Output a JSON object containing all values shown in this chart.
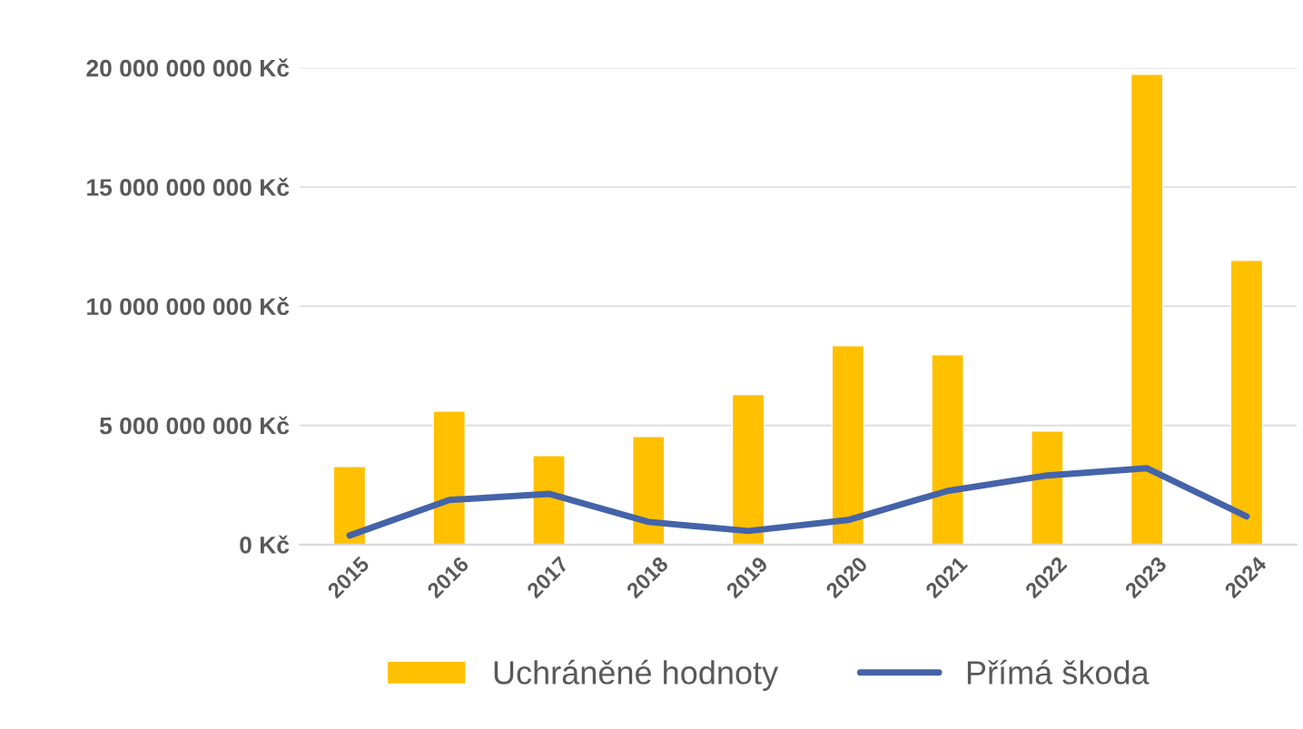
{
  "chart_data": {
    "type": "bar",
    "categories": [
      "2015",
      "2016",
      "2017",
      "2018",
      "2019",
      "2020",
      "2021",
      "2022",
      "2023",
      "2024"
    ],
    "series": [
      {
        "name": "Uchráněné hodnoty",
        "color": "#ffc000",
        "values": [
          3280000000,
          5600000000,
          3730000000,
          4530000000,
          6290000000,
          8340000000,
          7960000000,
          4760000000,
          19730000000,
          11920000000
        ]
      },
      {
        "name": "Přímá škoda",
        "type": "line",
        "color": "#4463a8",
        "values": [
          380000000,
          1870000000,
          2130000000,
          950000000,
          570000000,
          1030000000,
          2250000000,
          2900000000,
          3200000000,
          1180000000
        ]
      }
    ],
    "ylim": [
      0,
      20000000000
    ],
    "yticks": [
      {
        "value": 0,
        "label": "0 Kč"
      },
      {
        "value": 5000000000,
        "label": "5 000 000 000 Kč"
      },
      {
        "value": 10000000000,
        "label": "10 000 000 000 Kč"
      },
      {
        "value": 15000000000,
        "label": "15 000 000 000 Kč"
      },
      {
        "value": 20000000000,
        "label": "20 000 000 000 Kč"
      }
    ],
    "grid": "y",
    "legend": "bottom",
    "marker": "none",
    "line_style": "solid"
  }
}
